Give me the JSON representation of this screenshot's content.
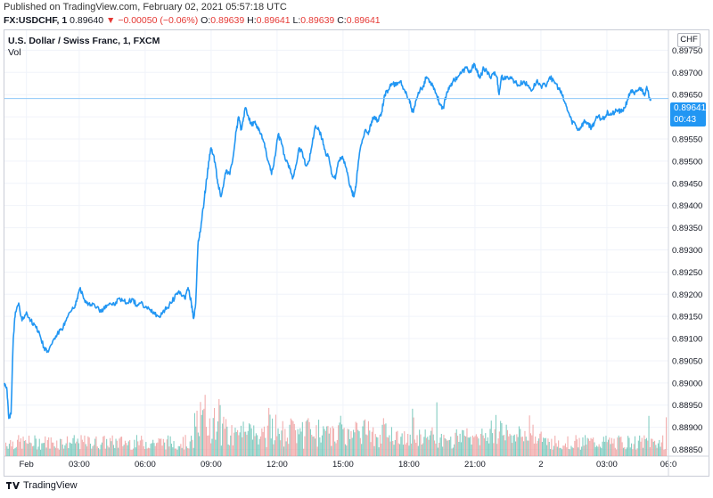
{
  "header": {
    "published": "Published on TradingView.com, February 02, 2021 05:57:18 UTC",
    "symbol": "FX:USDCHF, 1",
    "last": "0.89640",
    "change_arrow": "▼",
    "change": "−0.00050 (−0.06%)",
    "o_label": "O:",
    "o_value": "0.89639",
    "h_label": "H:",
    "h_value": "0.89641",
    "l_label": "L:",
    "l_value": "0.89639",
    "c_label": "C:",
    "c_value": "0.89641"
  },
  "chart_title": "U.S. Dollar / Swiss Franc, 1, FXCM",
  "volume_label": "Vol",
  "currency_badge": "CHF",
  "price_tag": {
    "price": "0.89641",
    "countdown": "00:43"
  },
  "footer": {
    "brand": "TradingView"
  },
  "colors": {
    "line": "#2196f3",
    "vol_up": "#66c2b4",
    "vol_down": "#ef9a9a",
    "tag_bg": "#2196f3",
    "grid": "#f0f3fa"
  },
  "chart_data": {
    "type": "line",
    "title": "U.S. Dollar / Swiss Franc, 1, FXCM",
    "x_tick_labels": [
      "Feb",
      "03:00",
      "06:00",
      "09:00",
      "12:00",
      "15:00",
      "18:00",
      "21:00",
      "2",
      "03:00",
      "06:0"
    ],
    "y_tick_labels": [
      "0.89750",
      "0.89700",
      "0.89650",
      "0.89600",
      "0.89550",
      "0.89500",
      "0.89450",
      "0.89400",
      "0.89350",
      "0.89300",
      "0.89250",
      "0.89200",
      "0.89150",
      "0.89100",
      "0.89050",
      "0.89000",
      "0.88950",
      "0.88900",
      "0.88850"
    ],
    "ylim": [
      0.88835,
      0.89795
    ],
    "x_range_hours": [
      -0.4,
      29.8
    ],
    "series": [
      {
        "values": [
          [
            -0.4,
            0.89
          ],
          [
            -0.3,
            0.8899
          ],
          [
            -0.2,
            0.8892
          ],
          [
            -0.1,
            0.8893
          ],
          [
            0.0,
            0.891
          ],
          [
            0.1,
            0.8916
          ],
          [
            0.25,
            0.8918
          ],
          [
            0.4,
            0.8914
          ],
          [
            0.6,
            0.8916
          ],
          [
            0.8,
            0.8914
          ],
          [
            1.0,
            0.8913
          ],
          [
            1.2,
            0.8911
          ],
          [
            1.4,
            0.8908
          ],
          [
            1.6,
            0.8907
          ],
          [
            1.8,
            0.89095
          ],
          [
            2.0,
            0.8911
          ],
          [
            2.2,
            0.8912
          ],
          [
            2.4,
            0.8914
          ],
          [
            2.6,
            0.8916
          ],
          [
            2.8,
            0.8917
          ],
          [
            2.9,
            0.8919
          ],
          [
            3.05,
            0.89215
          ],
          [
            3.2,
            0.8919
          ],
          [
            3.4,
            0.89175
          ],
          [
            3.6,
            0.8918
          ],
          [
            3.8,
            0.8917
          ],
          [
            4.0,
            0.8916
          ],
          [
            4.2,
            0.89175
          ],
          [
            4.4,
            0.8918
          ],
          [
            4.6,
            0.89175
          ],
          [
            4.8,
            0.8919
          ],
          [
            5.0,
            0.89185
          ],
          [
            5.2,
            0.8918
          ],
          [
            5.4,
            0.8919
          ],
          [
            5.6,
            0.89175
          ],
          [
            5.8,
            0.8918
          ],
          [
            6.0,
            0.8917
          ],
          [
            6.2,
            0.89165
          ],
          [
            6.4,
            0.8916
          ],
          [
            6.6,
            0.8915
          ],
          [
            6.8,
            0.8916
          ],
          [
            7.0,
            0.8917
          ],
          [
            7.2,
            0.8918
          ],
          [
            7.4,
            0.892
          ],
          [
            7.6,
            0.89205
          ],
          [
            7.8,
            0.8919
          ],
          [
            7.95,
            0.89215
          ],
          [
            8.1,
            0.8918
          ],
          [
            8.2,
            0.89145
          ],
          [
            8.3,
            0.8918
          ],
          [
            8.4,
            0.8931
          ],
          [
            8.5,
            0.8934
          ],
          [
            8.55,
            0.8936
          ],
          [
            8.7,
            0.8942
          ],
          [
            8.8,
            0.8946
          ],
          [
            8.9,
            0.895
          ],
          [
            9.0,
            0.8953
          ],
          [
            9.1,
            0.89515
          ],
          [
            9.2,
            0.8949
          ],
          [
            9.3,
            0.8945
          ],
          [
            9.45,
            0.8942
          ],
          [
            9.6,
            0.8946
          ],
          [
            9.7,
            0.8948
          ],
          [
            9.85,
            0.8947
          ],
          [
            10.0,
            0.8951
          ],
          [
            10.15,
            0.8957
          ],
          [
            10.25,
            0.896
          ],
          [
            10.35,
            0.8957
          ],
          [
            10.45,
            0.8959
          ],
          [
            10.55,
            0.8962
          ],
          [
            10.7,
            0.896
          ],
          [
            10.85,
            0.8958
          ],
          [
            11.0,
            0.8959
          ],
          [
            11.15,
            0.8957
          ],
          [
            11.3,
            0.8956
          ],
          [
            11.45,
            0.8953
          ],
          [
            11.6,
            0.895
          ],
          [
            11.75,
            0.8947
          ],
          [
            11.9,
            0.8951
          ],
          [
            12.05,
            0.8956
          ],
          [
            12.2,
            0.8954
          ],
          [
            12.4,
            0.895
          ],
          [
            12.55,
            0.8949
          ],
          [
            12.7,
            0.8946
          ],
          [
            12.85,
            0.8949
          ],
          [
            13.0,
            0.8953
          ],
          [
            13.15,
            0.8952
          ],
          [
            13.3,
            0.8949
          ],
          [
            13.45,
            0.895
          ],
          [
            13.6,
            0.8954
          ],
          [
            13.75,
            0.8958
          ],
          [
            13.9,
            0.8957
          ],
          [
            14.05,
            0.8955
          ],
          [
            14.2,
            0.8952
          ],
          [
            14.35,
            0.8951
          ],
          [
            14.5,
            0.8947
          ],
          [
            14.65,
            0.8946
          ],
          [
            14.8,
            0.895
          ],
          [
            14.95,
            0.8951
          ],
          [
            15.1,
            0.8949
          ],
          [
            15.25,
            0.8946
          ],
          [
            15.4,
            0.8943
          ],
          [
            15.5,
            0.8942
          ],
          [
            15.6,
            0.8945
          ],
          [
            15.7,
            0.895
          ],
          [
            15.85,
            0.8954
          ],
          [
            16.0,
            0.8957
          ],
          [
            16.15,
            0.8956
          ],
          [
            16.3,
            0.8959
          ],
          [
            16.45,
            0.896
          ],
          [
            16.6,
            0.8959
          ],
          [
            16.75,
            0.8961
          ],
          [
            16.9,
            0.8965
          ],
          [
            17.05,
            0.8966
          ],
          [
            17.2,
            0.89675
          ],
          [
            17.4,
            0.8967
          ],
          [
            17.6,
            0.8968
          ],
          [
            17.8,
            0.8966
          ],
          [
            18.0,
            0.8964
          ],
          [
            18.1,
            0.8962
          ],
          [
            18.2,
            0.8961
          ],
          [
            18.35,
            0.8964
          ],
          [
            18.5,
            0.8966
          ],
          [
            18.65,
            0.8967
          ],
          [
            18.8,
            0.8969
          ],
          [
            18.95,
            0.8968
          ],
          [
            19.1,
            0.8967
          ],
          [
            19.25,
            0.8965
          ],
          [
            19.4,
            0.8963
          ],
          [
            19.55,
            0.8962
          ],
          [
            19.7,
            0.8965
          ],
          [
            19.85,
            0.8967
          ],
          [
            20.0,
            0.8968
          ],
          [
            20.2,
            0.8969
          ],
          [
            20.4,
            0.897
          ],
          [
            20.6,
            0.8971
          ],
          [
            20.8,
            0.897
          ],
          [
            20.95,
            0.8972
          ],
          [
            21.1,
            0.897
          ],
          [
            21.25,
            0.8969
          ],
          [
            21.4,
            0.8971
          ],
          [
            21.55,
            0.897
          ],
          [
            21.7,
            0.8969
          ],
          [
            21.85,
            0.897
          ],
          [
            22.0,
            0.8969
          ],
          [
            22.1,
            0.8965
          ],
          [
            22.2,
            0.8969
          ],
          [
            22.4,
            0.89685
          ],
          [
            22.6,
            0.8969
          ],
          [
            22.8,
            0.8968
          ],
          [
            23.0,
            0.8967
          ],
          [
            23.2,
            0.8968
          ],
          [
            23.4,
            0.8967
          ],
          [
            23.6,
            0.8966
          ],
          [
            23.8,
            0.8968
          ],
          [
            24.0,
            0.8967
          ],
          [
            24.2,
            0.8967
          ],
          [
            24.4,
            0.8969
          ],
          [
            24.6,
            0.8968
          ],
          [
            24.8,
            0.89665
          ],
          [
            24.95,
            0.8965
          ],
          [
            25.1,
            0.8963
          ],
          [
            25.25,
            0.8961
          ],
          [
            25.4,
            0.8959
          ],
          [
            25.55,
            0.89585
          ],
          [
            25.7,
            0.8957
          ],
          [
            25.85,
            0.8958
          ],
          [
            26.0,
            0.8959
          ],
          [
            26.15,
            0.89585
          ],
          [
            26.3,
            0.89575
          ],
          [
            26.45,
            0.8959
          ],
          [
            26.6,
            0.896
          ],
          [
            26.75,
            0.89595
          ],
          [
            26.9,
            0.896
          ],
          [
            27.05,
            0.8961
          ],
          [
            27.2,
            0.89605
          ],
          [
            27.35,
            0.8961
          ],
          [
            27.5,
            0.89615
          ],
          [
            27.65,
            0.8961
          ],
          [
            27.8,
            0.8962
          ],
          [
            27.95,
            0.8964
          ],
          [
            28.1,
            0.8966
          ],
          [
            28.25,
            0.8965
          ],
          [
            28.4,
            0.8966
          ],
          [
            28.55,
            0.89665
          ],
          [
            28.7,
            0.8965
          ],
          [
            28.8,
            0.89665
          ],
          [
            28.9,
            0.8965
          ],
          [
            29.0,
            0.8964
          ]
        ]
      }
    ],
    "volume": {
      "note": "1-minute bars along the bottom, typically 5-25% of panel height; spikes up to ~55% around 08:30-09:30 and ~40% near 22:00",
      "up_color": "#66c2b4",
      "down_color": "#ef9a9a"
    },
    "last_price": 0.89641,
    "grid": true
  }
}
